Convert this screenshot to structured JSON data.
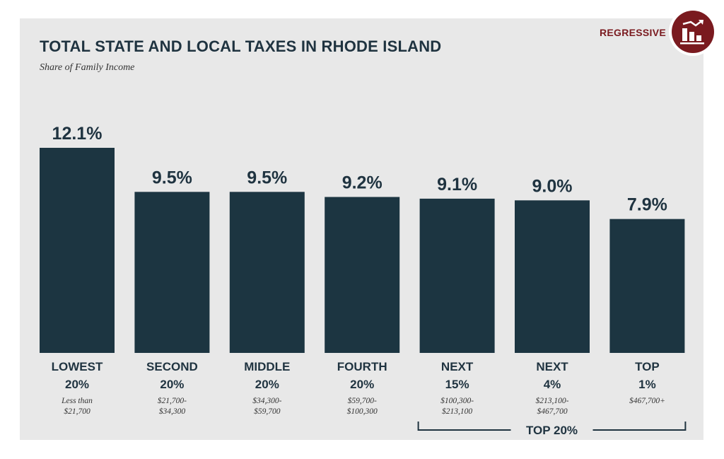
{
  "badge": {
    "label": "REGRESSIVE",
    "icon": "regressive-bar-chart-icon",
    "color": "#7a1a1f"
  },
  "chart_data": {
    "type": "bar",
    "title": "TOTAL STATE AND LOCAL TAXES IN RHODE ISLAND",
    "subtitle": "Share of Family Income",
    "unit": "%",
    "categories": [
      {
        "label": [
          "LOWEST",
          "20%"
        ],
        "range": [
          "Less than",
          "$21,700"
        ]
      },
      {
        "label": [
          "SECOND",
          "20%"
        ],
        "range": [
          "$21,700-",
          "$34,300"
        ]
      },
      {
        "label": [
          "MIDDLE",
          "20%"
        ],
        "range": [
          "$34,300-",
          "$59,700"
        ]
      },
      {
        "label": [
          "FOURTH",
          "20%"
        ],
        "range": [
          "$59,700-",
          "$100,300"
        ]
      },
      {
        "label": [
          "NEXT",
          "15%"
        ],
        "range": [
          "$100,300-",
          "$213,100"
        ]
      },
      {
        "label": [
          "NEXT",
          "4%"
        ],
        "range": [
          "$213,100-",
          "$467,700"
        ]
      },
      {
        "label": [
          "TOP",
          "1%"
        ],
        "range": [
          "$467,700+"
        ]
      }
    ],
    "values": [
      12.1,
      9.5,
      9.5,
      9.2,
      9.1,
      9.0,
      7.9
    ],
    "value_labels": [
      "12.1%",
      "9.5%",
      "9.5%",
      "9.2%",
      "9.1%",
      "9.0%",
      "7.9%"
    ],
    "group_bracket": {
      "label": "TOP 20%",
      "from_index": 4,
      "to_index": 6
    },
    "bar_color": "#1c3541",
    "panel_color": "#e8e8e8",
    "ylim": [
      0,
      12.1
    ],
    "grid": false,
    "legend": "none"
  }
}
